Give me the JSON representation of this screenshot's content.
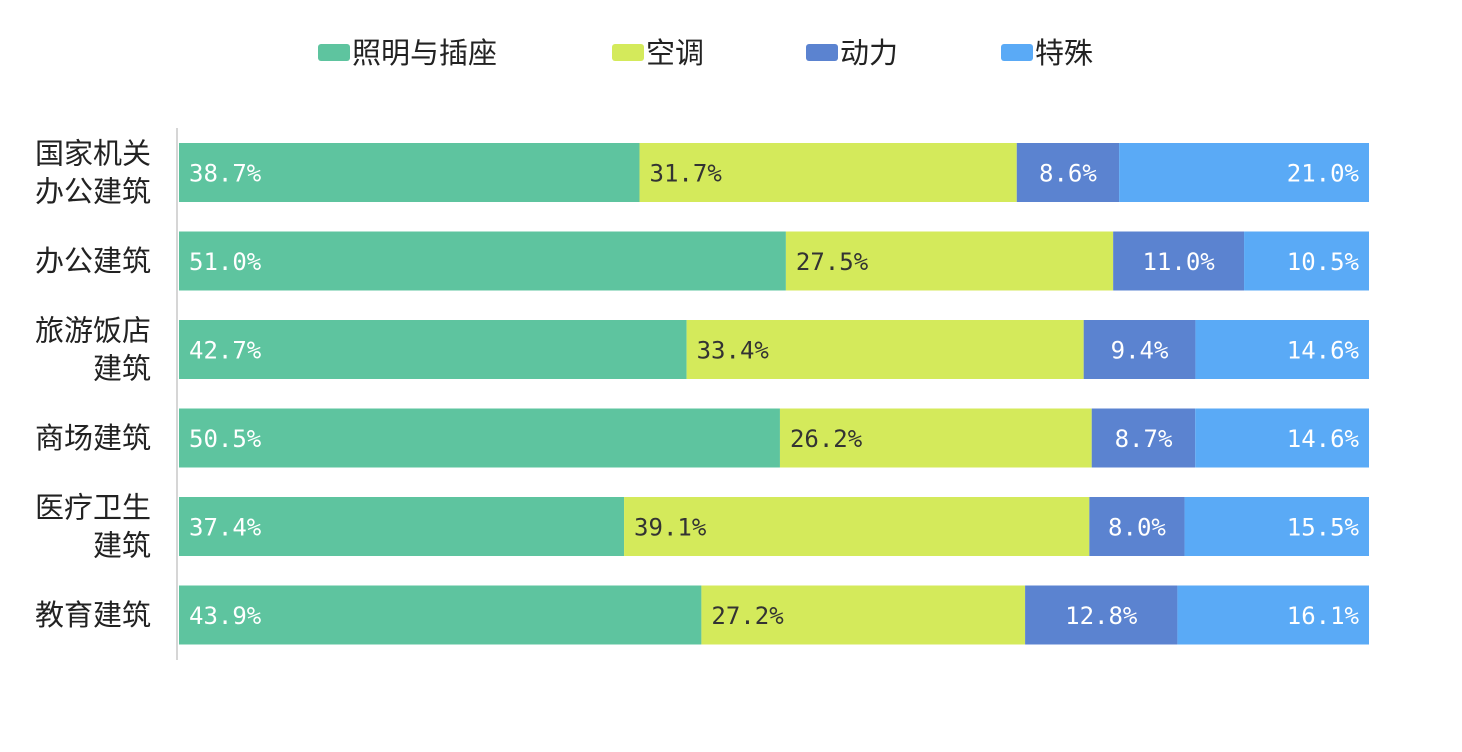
{
  "chart_data": {
    "type": "bar",
    "orientation": "horizontal",
    "stacked": "percent",
    "categories": [
      [
        "国家机关",
        "办公建筑"
      ],
      [
        "办公建筑"
      ],
      [
        "旅游饭店",
        "建筑"
      ],
      [
        "商场建筑"
      ],
      [
        "医疗卫生",
        "建筑"
      ],
      [
        "教育建筑"
      ]
    ],
    "series": [
      {
        "name": "照明与插座",
        "color": "#5ec49f",
        "label_color": "#ffffff",
        "values": [
          38.7,
          51.0,
          42.7,
          50.5,
          37.4,
          43.9
        ],
        "labels": [
          "38.7%",
          "51.0%",
          "42.7%",
          "50.5%",
          "37.4%",
          "43.9%"
        ]
      },
      {
        "name": "空调",
        "color": "#d4ea5b",
        "label_color": "#333333",
        "values": [
          31.7,
          27.5,
          33.4,
          26.2,
          39.1,
          27.2
        ],
        "labels": [
          "31.7%",
          "27.5%",
          "33.4%",
          "26.2%",
          "39.1%",
          "27.2%"
        ]
      },
      {
        "name": "动力",
        "color": "#5b83d0",
        "label_color": "#ffffff",
        "values": [
          8.6,
          11.0,
          9.4,
          8.7,
          8.0,
          12.8
        ],
        "labels": [
          "8.6%",
          "11.0%",
          "9.4%",
          "8.7%",
          "8.0%",
          "12.8%"
        ]
      },
      {
        "name": "特殊",
        "color": "#5aaaf6",
        "label_color": "#ffffff",
        "values": [
          21.0,
          10.5,
          14.6,
          14.6,
          15.5,
          16.1
        ],
        "labels": [
          "21.0%",
          "10.5%",
          "14.6%",
          "14.6%",
          "15.5%",
          "16.1%"
        ]
      }
    ],
    "title": "",
    "xlabel": "",
    "ylabel": "",
    "xlim": [
      0,
      100
    ],
    "grid": false,
    "legend_position": "top"
  }
}
